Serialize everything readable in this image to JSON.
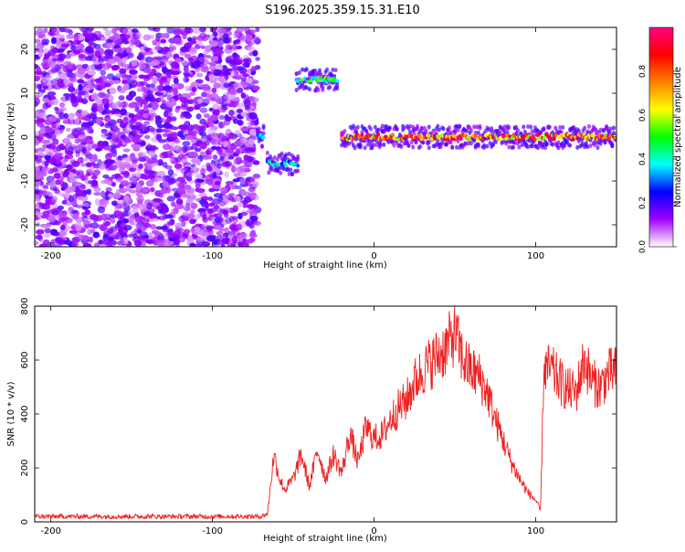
{
  "title": "S196.2025.359.15.31.E10",
  "colorbar": {
    "label": "Normalized spectral amplitude",
    "ticks": [
      "0.0",
      "0.2",
      "0.4",
      "0.6",
      "0.8"
    ],
    "tick_values": [
      0.0,
      0.2,
      0.4,
      0.6,
      0.8
    ],
    "range": [
      0,
      1
    ],
    "colors": [
      "#ffffff",
      "#a000ff",
      "#0000ff",
      "#00ffff",
      "#00ff00",
      "#ffff00",
      "#ff8000",
      "#ff0000",
      "#ff0080"
    ]
  },
  "chart_data": [
    {
      "type": "heatmap",
      "title": "S196.2025.359.15.31.E10",
      "xlabel": "Height of straight line (km)",
      "ylabel": "Frequency (Hz)",
      "xlim": [
        -210,
        150
      ],
      "ylim": [
        -25,
        25
      ],
      "xticks": [
        -200,
        -100,
        0,
        100
      ],
      "xtick_labels": [
        "-200",
        "-100",
        "0",
        "100"
      ],
      "yticks": [
        -20,
        -10,
        0,
        10,
        20
      ],
      "ytick_labels": [
        "-20",
        "-10",
        "0",
        "10",
        "20"
      ],
      "features": [
        {
          "name": "broadband noise",
          "x_range": [
            -210,
            -72
          ],
          "f_range": [
            -25,
            25
          ],
          "amplitude": 0.1
        },
        {
          "name": "carrier segment",
          "x_range": [
            -72,
            -68
          ],
          "f_center": 0,
          "amplitude": 0.4
        },
        {
          "name": "carrier segment",
          "x_range": [
            -66,
            -47
          ],
          "f_center": -6,
          "amplitude": 0.4
        },
        {
          "name": "carrier segment",
          "x_range": [
            -48,
            -22
          ],
          "f_center": 13,
          "amplitude": 0.55
        },
        {
          "name": "carrier",
          "x_range": [
            -20,
            150
          ],
          "f_center": 0,
          "amplitude": 0.9
        }
      ]
    },
    {
      "type": "line",
      "xlabel": "Height of straight line (km)",
      "ylabel": "SNR (10 * v/v)",
      "xlim": [
        -210,
        150
      ],
      "ylim": [
        0,
        800
      ],
      "xticks": [
        -200,
        -100,
        0,
        100
      ],
      "xtick_labels": [
        "-200",
        "-100",
        "0",
        "100"
      ],
      "yticks": [
        0,
        200,
        400,
        600,
        800
      ],
      "ytick_labels": [
        "0",
        "200",
        "400",
        "600",
        "800"
      ],
      "series": [
        {
          "name": "SNR",
          "color": "#ee2222",
          "x": [
            -210,
            -200,
            -190,
            -180,
            -170,
            -160,
            -150,
            -140,
            -130,
            -120,
            -110,
            -100,
            -90,
            -80,
            -70,
            -66,
            -62,
            -58,
            -55,
            -50,
            -45,
            -40,
            -35,
            -30,
            -25,
            -20,
            -15,
            -10,
            -5,
            0,
            5,
            10,
            15,
            20,
            25,
            30,
            35,
            40,
            45,
            50,
            55,
            60,
            65,
            70,
            75,
            80,
            85,
            90,
            95,
            100,
            103,
            105,
            110,
            115,
            120,
            125,
            130,
            135,
            140,
            145,
            150
          ],
          "values": [
            20,
            20,
            20,
            20,
            20,
            20,
            20,
            20,
            20,
            20,
            20,
            20,
            20,
            20,
            20,
            30,
            250,
            150,
            120,
            160,
            250,
            130,
            270,
            160,
            250,
            180,
            330,
            220,
            350,
            310,
            320,
            380,
            420,
            450,
            520,
            560,
            590,
            620,
            650,
            700,
            600,
            560,
            540,
            480,
            380,
            300,
            220,
            160,
            110,
            80,
            40,
            570,
            560,
            520,
            490,
            480,
            600,
            520,
            500,
            550,
            560
          ]
        }
      ]
    }
  ]
}
